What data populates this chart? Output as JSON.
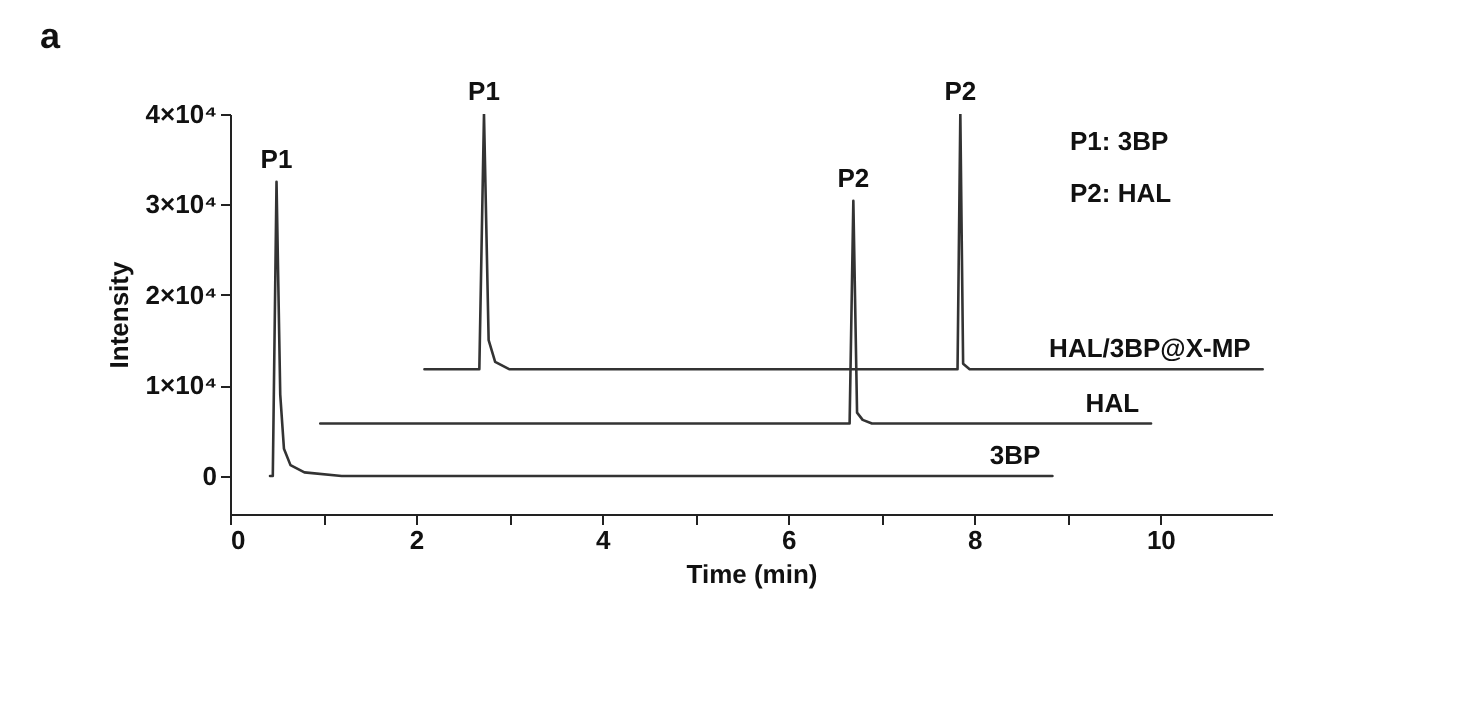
{
  "chart_data": {
    "type": "line",
    "title": "a",
    "xlabel": "Time (min)",
    "ylabel": "Intensity",
    "xlim": [
      0,
      11.2
    ],
    "ylim": [
      -4200,
      40000
    ],
    "xticks": [
      0,
      {
        "value": 1,
        "label": null
      },
      2,
      {
        "value": 3,
        "label": null
      },
      4,
      {
        "value": 5,
        "label": null
      },
      6,
      {
        "value": 7,
        "label": null
      },
      8,
      {
        "value": 9,
        "label": null
      },
      10
    ],
    "yticks": [
      0,
      {
        "value": 10000,
        "label": "1×10⁴"
      },
      {
        "value": 20000,
        "label": "2×10⁴"
      },
      {
        "value": 30000,
        "label": "3×10⁴"
      },
      {
        "value": 40000,
        "label": "4×10⁴"
      }
    ],
    "grid": false,
    "legend": false,
    "marker": "none",
    "line_style": "solid",
    "series": [
      {
        "name": "3BP",
        "color": "#333333",
        "x": [
          0.43,
          0.46,
          0.5,
          0.54,
          0.58,
          0.65,
          0.8,
          1.2,
          8.84
        ],
        "values": [
          0,
          0,
          32500,
          9000,
          3000,
          1200,
          400,
          0,
          0
        ]
      },
      {
        "name": "HAL",
        "color": "#333333",
        "x": [
          0.97,
          6.6,
          6.66,
          6.7,
          6.74,
          6.8,
          6.9,
          9.9
        ],
        "values": [
          5800,
          5800,
          5800,
          30400,
          7000,
          6200,
          5800,
          5800
        ]
      },
      {
        "name": "HAL/3BP@X-MP",
        "color": "#333333",
        "x": [
          2.09,
          2.64,
          2.68,
          2.73,
          2.78,
          2.85,
          3.0,
          7.78,
          7.82,
          7.85,
          7.88,
          7.95,
          11.1
        ],
        "values": [
          11800,
          11800,
          11800,
          40000,
          15000,
          12600,
          11800,
          11800,
          11800,
          40000,
          12400,
          11800,
          11800
        ]
      }
    ],
    "annotations": [
      {
        "text": "P1",
        "x": 0.5,
        "y": 32500
      },
      {
        "text": "P1",
        "x": 2.73,
        "y": 40000
      },
      {
        "text": "P2",
        "x": 6.7,
        "y": 30400
      },
      {
        "text": "P2",
        "x": 7.85,
        "y": 40000
      },
      "P1: 3BP",
      "P2: HAL"
    ]
  }
}
